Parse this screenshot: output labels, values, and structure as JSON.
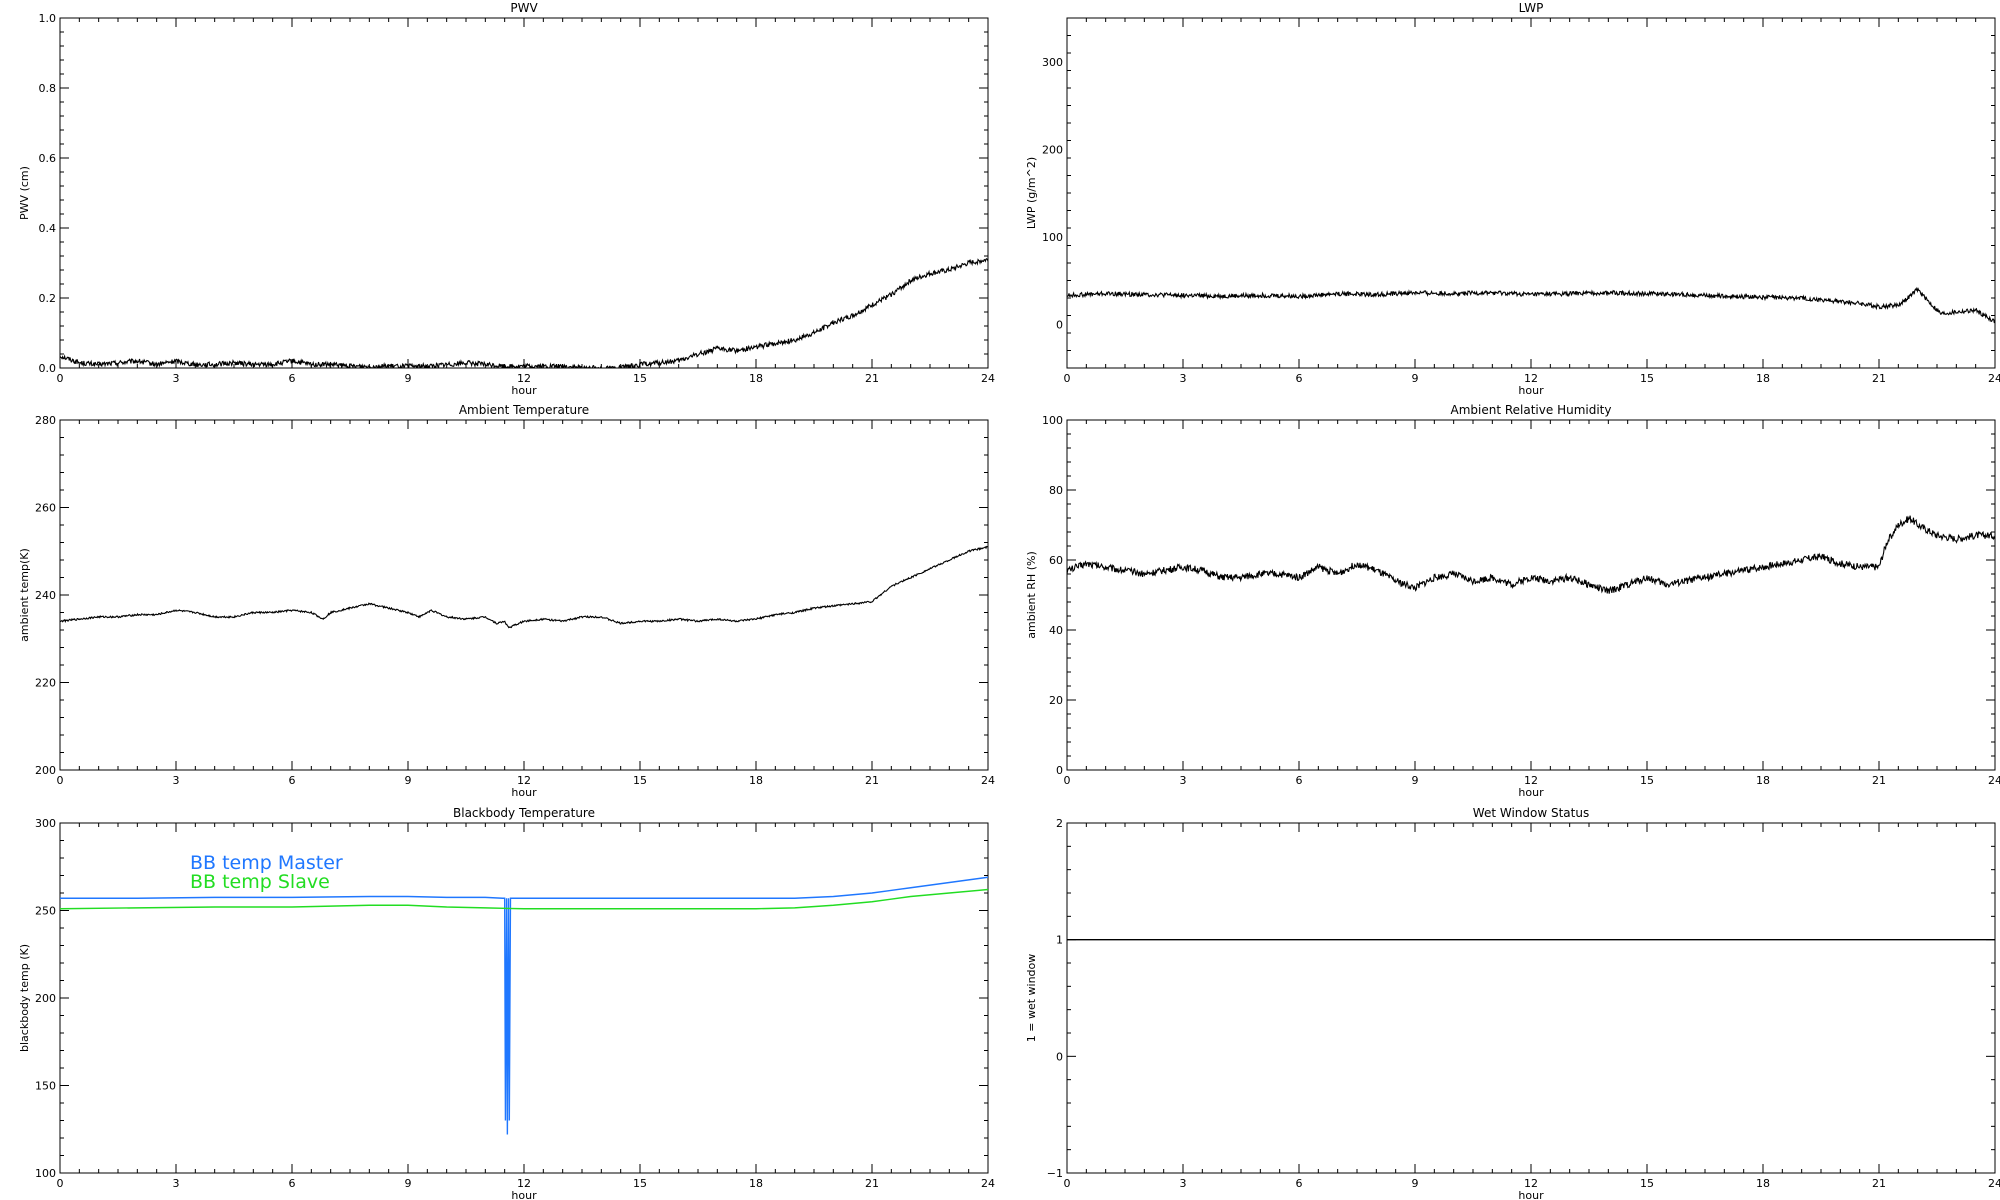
{
  "chart_data": [
    {
      "type": "line",
      "title": "PWV",
      "xlabel": "hour",
      "ylabel": "PWV (cm)",
      "xlim": [
        0,
        24
      ],
      "ylim": [
        0,
        1.0
      ],
      "xticks": [
        "0",
        "3",
        "6",
        "9",
        "12",
        "15",
        "18",
        "21",
        "24"
      ],
      "yticks": [
        "0.0",
        "0.2",
        "0.4",
        "0.6",
        "0.8",
        "1.0"
      ],
      "grid": false,
      "series": [
        {
          "color": "#000000",
          "noise": 0.007,
          "x": [
            0,
            0.5,
            1,
            1.5,
            2,
            2.5,
            3,
            3.5,
            4,
            4.5,
            5,
            5.5,
            6,
            6.5,
            7,
            7.5,
            8,
            8.5,
            9,
            9.5,
            10,
            10.5,
            11,
            11.5,
            12,
            12.5,
            13,
            13.5,
            14,
            14.5,
            15,
            15.5,
            16,
            16.5,
            17,
            17.5,
            18,
            18.5,
            19,
            19.5,
            20,
            20.5,
            21,
            21.5,
            22,
            22.5,
            23,
            23.5,
            24
          ],
          "y": [
            0.035,
            0.015,
            0.01,
            0.015,
            0.02,
            0.01,
            0.02,
            0.01,
            0.01,
            0.015,
            0.01,
            0.01,
            0.02,
            0.01,
            0.01,
            0.005,
            0.005,
            0.005,
            0.005,
            0.005,
            0.01,
            0.015,
            0.01,
            0.005,
            0.005,
            0.005,
            0.005,
            0.0,
            0.0,
            0.0,
            0.01,
            0.015,
            0.02,
            0.04,
            0.055,
            0.05,
            0.06,
            0.07,
            0.08,
            0.1,
            0.13,
            0.15,
            0.18,
            0.21,
            0.25,
            0.27,
            0.28,
            0.3,
            0.31
          ]
        }
      ]
    },
    {
      "type": "line",
      "title": "LWP",
      "xlabel": "hour",
      "ylabel": "LWP (g/m^2)",
      "xlim": [
        0,
        24
      ],
      "ylim": [
        -50,
        350
      ],
      "xticks": [
        "0",
        "3",
        "6",
        "9",
        "12",
        "15",
        "18",
        "21",
        "24"
      ],
      "yticks": [
        "0",
        "100",
        "200",
        "300"
      ],
      "grid": false,
      "series": [
        {
          "color": "#000000",
          "noise": 2.5,
          "x": [
            0,
            1,
            2,
            3,
            4,
            5,
            6,
            7,
            8,
            9,
            10,
            11,
            12,
            13,
            14,
            15,
            16,
            17,
            18,
            19,
            20,
            20.5,
            21,
            21.5,
            21.8,
            22,
            22.3,
            22.6,
            23,
            23.5,
            24
          ],
          "y": [
            33,
            35,
            34,
            33,
            32,
            33,
            32,
            35,
            34,
            36,
            35,
            36,
            34,
            35,
            36,
            35,
            34,
            32,
            31,
            30,
            26,
            24,
            20,
            22,
            32,
            40,
            25,
            12,
            14,
            16,
            3
          ]
        }
      ]
    },
    {
      "type": "line",
      "title": "Ambient Temperature",
      "xlabel": "hour",
      "ylabel": "ambient temp(K)",
      "xlim": [
        0,
        24
      ],
      "ylim": [
        200,
        280
      ],
      "xticks": [
        "0",
        "3",
        "6",
        "9",
        "12",
        "15",
        "18",
        "21",
        "24"
      ],
      "yticks": [
        "200",
        "220",
        "240",
        "260",
        "280"
      ],
      "grid": false,
      "series": [
        {
          "color": "#000000",
          "noise": 0.2,
          "x": [
            0,
            0.5,
            1,
            1.5,
            2,
            2.5,
            3,
            3.5,
            4,
            4.5,
            5,
            5.5,
            6,
            6.5,
            6.8,
            7,
            7.5,
            8,
            8.5,
            9,
            9.3,
            9.6,
            10,
            10.5,
            11,
            11.3,
            11.5,
            11.6,
            12,
            12.5,
            13,
            13.5,
            14,
            14.5,
            15,
            15.5,
            16,
            16.5,
            17,
            17.5,
            18,
            18.5,
            19,
            19.5,
            20,
            20.5,
            21,
            21.5,
            22,
            22.5,
            23,
            23.5,
            24
          ],
          "y": [
            234,
            234.5,
            235,
            235,
            235.5,
            235.5,
            236.5,
            236,
            235,
            235,
            236,
            236,
            236.5,
            236,
            234.5,
            236,
            237,
            238,
            237,
            236,
            235,
            236.5,
            235,
            234.5,
            235,
            233.5,
            234,
            232.5,
            234,
            234.5,
            234,
            235,
            235,
            233.5,
            234,
            234,
            234.5,
            234,
            234.5,
            234,
            234.5,
            235.5,
            236,
            237,
            237.5,
            238,
            238.5,
            242,
            244,
            246,
            248,
            250,
            251
          ]
        }
      ]
    },
    {
      "type": "line",
      "title": "Ambient Relative Humidity",
      "xlabel": "hour",
      "ylabel": "ambient RH (%)",
      "xlim": [
        0,
        24
      ],
      "ylim": [
        0,
        100
      ],
      "xticks": [
        "0",
        "3",
        "6",
        "9",
        "12",
        "15",
        "18",
        "21",
        "24"
      ],
      "yticks": [
        "0",
        "20",
        "40",
        "60",
        "80",
        "100"
      ],
      "grid": false,
      "series": [
        {
          "color": "#000000",
          "noise": 1.0,
          "x": [
            0,
            0.5,
            1,
            1.5,
            2,
            2.5,
            3,
            3.5,
            4,
            4.5,
            5,
            5.5,
            6,
            6.5,
            7,
            7.5,
            8,
            8.5,
            9,
            9.5,
            10,
            10.5,
            11,
            11.5,
            12,
            12.5,
            13,
            13.5,
            14,
            14.5,
            15,
            15.5,
            16,
            16.5,
            17,
            17.5,
            18,
            18.5,
            19,
            19.5,
            20,
            20.5,
            21,
            21.2,
            21.5,
            21.8,
            22,
            22.5,
            23,
            23.5,
            24
          ],
          "y": [
            57,
            59,
            58,
            57,
            56,
            57,
            58,
            57,
            55,
            55,
            56,
            56,
            55,
            58,
            56,
            59,
            57,
            54,
            52,
            55,
            56,
            54,
            55,
            53,
            55,
            54,
            55,
            53,
            51,
            53,
            55,
            53,
            54,
            55,
            56,
            57,
            58,
            59,
            60,
            61,
            59,
            58,
            58,
            65,
            70,
            72,
            70,
            67,
            66,
            67,
            67
          ]
        }
      ]
    },
    {
      "type": "line",
      "title": "Blackbody Temperature",
      "xlabel": "hour",
      "ylabel": "blackbody temp (K)",
      "xlim": [
        0,
        24
      ],
      "ylim": [
        100,
        300
      ],
      "xticks": [
        "0",
        "3",
        "6",
        "9",
        "12",
        "15",
        "18",
        "21",
        "24"
      ],
      "yticks": [
        "100",
        "150",
        "200",
        "250",
        "300"
      ],
      "grid": false,
      "legend": "top-left",
      "series": [
        {
          "name": "BB temp Master",
          "color": "#1f77ff",
          "noise": 0,
          "x": [
            0,
            2,
            4,
            6,
            8,
            9,
            10,
            11,
            11.45,
            11.5,
            11.52,
            11.55,
            11.57,
            11.6,
            11.62,
            11.65,
            11.7,
            12,
            14,
            16,
            18,
            19,
            20,
            21,
            22,
            23,
            24
          ],
          "y": [
            257,
            257,
            257.5,
            257.5,
            258,
            258,
            257.5,
            257.5,
            257,
            257,
            130,
            257,
            122,
            257,
            130,
            257,
            257,
            257,
            257,
            257,
            257,
            257,
            258,
            260,
            263,
            266,
            269
          ]
        },
        {
          "name": "BB temp Slave",
          "color": "#22dd22",
          "noise": 0,
          "x": [
            0,
            2,
            4,
            6,
            8,
            9,
            10,
            11,
            12,
            14,
            16,
            18,
            19,
            20,
            21,
            22,
            23,
            24
          ],
          "y": [
            251,
            251.5,
            252,
            252,
            253,
            253,
            252,
            251.5,
            251,
            251,
            251,
            251,
            251.5,
            253,
            255,
            258,
            260,
            262
          ]
        }
      ]
    },
    {
      "type": "line",
      "title": "Wet Window Status",
      "xlabel": "hour",
      "ylabel": "1 = wet window",
      "xlim": [
        0,
        24
      ],
      "ylim": [
        -1,
        2
      ],
      "xticks": [
        "0",
        "3",
        "6",
        "9",
        "12",
        "15",
        "18",
        "21",
        "24"
      ],
      "yticks": [
        "−1",
        "0",
        "1",
        "2"
      ],
      "grid": false,
      "series": [
        {
          "color": "#000000",
          "noise": 0,
          "x": [
            0,
            24
          ],
          "y": [
            1,
            1
          ]
        }
      ]
    }
  ]
}
